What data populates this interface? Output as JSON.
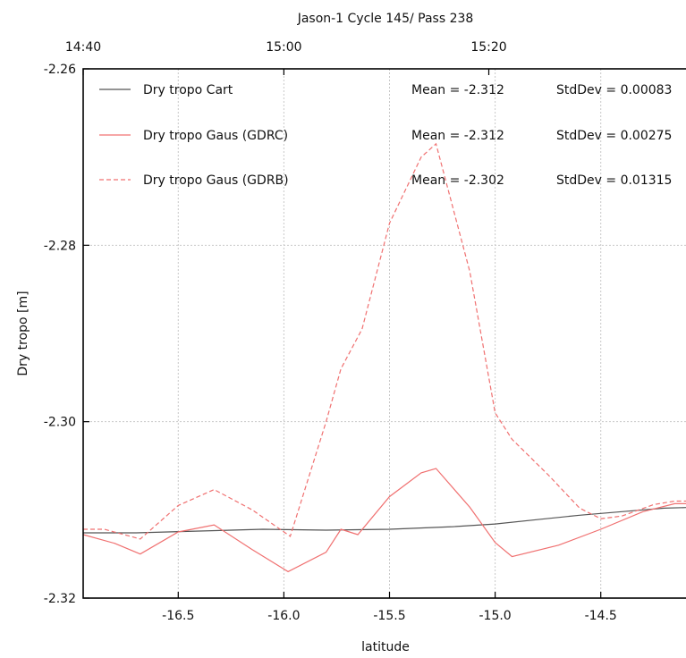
{
  "chart_data": {
    "type": "line",
    "title": "Jason-1 Cycle 145/ Pass 238",
    "xlabel": "latitude",
    "ylabel": "Dry tropo [m]",
    "xlim": [
      -16.95,
      -14.05
    ],
    "ylim": [
      -2.32,
      -2.26
    ],
    "x_ticks": [
      -16.5,
      -16.0,
      -15.5,
      -15.0,
      -14.5
    ],
    "x_tick_labels": [
      "-16.5",
      "-16.0",
      "-15.5",
      "-15.0",
      "-14.5"
    ],
    "y_ticks": [
      -2.32,
      -2.3,
      -2.28,
      -2.26
    ],
    "y_tick_labels": [
      "-2.32",
      "-2.30",
      "-2.28",
      "-2.26"
    ],
    "top_axis": {
      "labels": [
        "14:40",
        "15:00",
        "15:20"
      ],
      "latitudes": [
        -16.95,
        -16.0,
        -15.03
      ]
    },
    "grid": true,
    "legend_position": "top-left",
    "series": [
      {
        "name": "Dry tropo Cart",
        "color": "#555555",
        "style": "solid",
        "mean_label": "Mean = -2.312",
        "stddev_label": "StdDev = 0.00083",
        "points": [
          [
            -16.95,
            -2.3126
          ],
          [
            -16.7,
            -2.3126
          ],
          [
            -16.4,
            -2.3124
          ],
          [
            -16.1,
            -2.3122
          ],
          [
            -15.8,
            -2.3123
          ],
          [
            -15.5,
            -2.3122
          ],
          [
            -15.2,
            -2.3119
          ],
          [
            -15.0,
            -2.3116
          ],
          [
            -14.8,
            -2.3111
          ],
          [
            -14.6,
            -2.3106
          ],
          [
            -14.4,
            -2.3102
          ],
          [
            -14.2,
            -2.3098
          ],
          [
            -14.05,
            -2.3097
          ]
        ]
      },
      {
        "name": "Dry tropo Gaus (GDRC)",
        "color": "#f07070",
        "style": "solid",
        "mean_label": "Mean = -2.312",
        "stddev_label": "StdDev = 0.00275",
        "points": [
          [
            -16.95,
            -2.3128
          ],
          [
            -16.8,
            -2.3138
          ],
          [
            -16.68,
            -2.315
          ],
          [
            -16.5,
            -2.3125
          ],
          [
            -16.33,
            -2.3117
          ],
          [
            -16.15,
            -2.3145
          ],
          [
            -15.98,
            -2.317
          ],
          [
            -15.8,
            -2.3148
          ],
          [
            -15.73,
            -2.3122
          ],
          [
            -15.65,
            -2.3128
          ],
          [
            -15.5,
            -2.3085
          ],
          [
            -15.35,
            -2.3058
          ],
          [
            -15.28,
            -2.3053
          ],
          [
            -15.12,
            -2.3097
          ],
          [
            -15.0,
            -2.3137
          ],
          [
            -14.92,
            -2.3153
          ],
          [
            -14.7,
            -2.314
          ],
          [
            -14.5,
            -2.3122
          ],
          [
            -14.3,
            -2.3102
          ],
          [
            -14.15,
            -2.3093
          ],
          [
            -14.05,
            -2.3093
          ]
        ]
      },
      {
        "name": "Dry tropo Gaus (GDRB)",
        "color": "#f07070",
        "style": "dashed",
        "mean_label": "Mean = -2.302",
        "stddev_label": "StdDev = 0.01315",
        "points": [
          [
            -16.95,
            -2.3122
          ],
          [
            -16.85,
            -2.3122
          ],
          [
            -16.68,
            -2.3133
          ],
          [
            -16.5,
            -2.3095
          ],
          [
            -16.33,
            -2.3077
          ],
          [
            -16.15,
            -2.31
          ],
          [
            -15.97,
            -2.313
          ],
          [
            -15.8,
            -2.3
          ],
          [
            -15.73,
            -2.294
          ],
          [
            -15.63,
            -2.2895
          ],
          [
            -15.5,
            -2.2775
          ],
          [
            -15.35,
            -2.27
          ],
          [
            -15.28,
            -2.2685
          ],
          [
            -15.12,
            -2.283
          ],
          [
            -15.0,
            -2.299
          ],
          [
            -14.92,
            -2.302
          ],
          [
            -14.75,
            -2.306
          ],
          [
            -14.6,
            -2.3098
          ],
          [
            -14.5,
            -2.311
          ],
          [
            -14.4,
            -2.3107
          ],
          [
            -14.25,
            -2.3094
          ],
          [
            -14.15,
            -2.309
          ],
          [
            -14.05,
            -2.309
          ]
        ]
      }
    ]
  }
}
